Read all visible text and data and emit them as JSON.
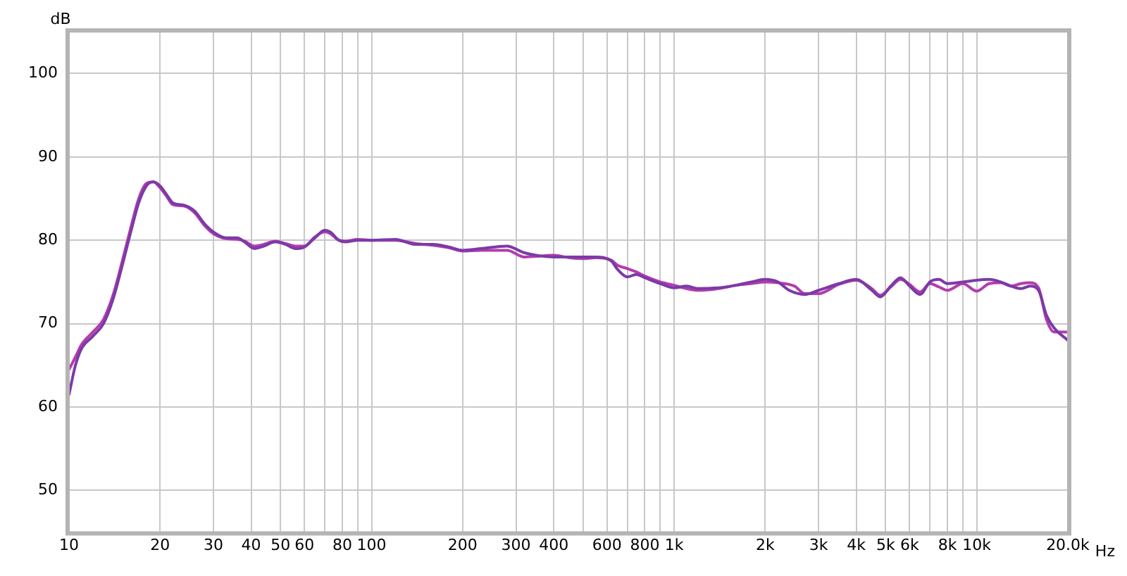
{
  "chart_data": {
    "type": "line",
    "xlabel": "Hz",
    "ylabel": "dB",
    "log": "x",
    "grid": true,
    "legend": false,
    "marker": "none",
    "line_style": "solid",
    "xlim": [
      10,
      20000
    ],
    "ylim": [
      45,
      105
    ],
    "xticks": [
      10,
      20,
      30,
      40,
      50,
      60,
      {
        "value": 70,
        "label": null
      },
      80,
      {
        "value": 90,
        "label": null
      },
      100,
      200,
      300,
      400,
      {
        "value": 500,
        "label": null
      },
      600,
      {
        "value": 700,
        "label": null
      },
      800,
      {
        "value": 900,
        "label": null
      },
      {
        "value": 1000,
        "label": "1k"
      },
      {
        "value": 2000,
        "label": "2k"
      },
      {
        "value": 3000,
        "label": "3k"
      },
      {
        "value": 4000,
        "label": "4k"
      },
      {
        "value": 5000,
        "label": "5k"
      },
      {
        "value": 6000,
        "label": "6k"
      },
      {
        "value": 7000,
        "label": null
      },
      {
        "value": 8000,
        "label": "8k"
      },
      {
        "value": 9000,
        "label": null
      },
      {
        "value": 10000,
        "label": "10k"
      },
      {
        "value": 20000,
        "label": "20.0k"
      }
    ],
    "yticks": [
      50,
      60,
      70,
      80,
      90,
      100
    ],
    "series": [
      {
        "color": "#7c3aa6",
        "x": [
          10,
          10.5,
          11,
          12,
          13,
          14,
          15,
          16,
          17,
          18,
          19,
          20,
          21,
          22,
          24,
          26,
          28,
          30,
          33,
          36,
          38,
          41,
          44,
          48,
          52,
          56,
          60,
          65,
          70,
          73,
          78,
          82,
          90,
          100,
          120,
          140,
          160,
          180,
          200,
          230,
          280,
          320,
          400,
          450,
          500,
          550,
          620,
          650,
          700,
          750,
          800,
          900,
          1000,
          1100,
          1200,
          1400,
          1600,
          1800,
          2000,
          2200,
          2400,
          2700,
          3000,
          3500,
          4000,
          4500,
          4800,
          5200,
          5600,
          6000,
          6500,
          7000,
          7500,
          8000,
          9000,
          10000,
          11000,
          12000,
          13000,
          14000,
          15000,
          16000,
          17000,
          18000,
          20000
        ],
        "values": [
          61.5,
          65,
          67,
          68.5,
          70,
          73,
          77,
          81,
          84.5,
          86.5,
          87,
          86.5,
          85.5,
          84.5,
          84.2,
          83.5,
          82,
          81,
          80.3,
          80.3,
          79.8,
          79,
          79.3,
          79.8,
          79.5,
          79,
          79.2,
          80.3,
          81.2,
          81,
          80,
          79.8,
          80,
          80,
          80.1,
          79.5,
          79.5,
          79.2,
          78.8,
          79,
          79.3,
          78.5,
          78,
          78,
          78,
          78,
          77.5,
          76.5,
          75.6,
          75.9,
          75.5,
          74.8,
          74.3,
          74.5,
          74.2,
          74.3,
          74.6,
          75,
          75.3,
          75,
          74,
          73.5,
          74,
          74.8,
          75.3,
          74,
          73.2,
          74.5,
          75.5,
          74.5,
          73.5,
          75,
          75.3,
          74.8,
          75,
          75.2,
          75.3,
          75,
          74.5,
          74.2,
          74.5,
          74,
          71,
          69.5,
          68
        ]
      },
      {
        "color": "#b33cae",
        "x": [
          10,
          10.5,
          11,
          12,
          13,
          14,
          15,
          16,
          17,
          18,
          19,
          20,
          21,
          22,
          24,
          26,
          28,
          30,
          33,
          36,
          38,
          41,
          44,
          48,
          52,
          56,
          60,
          65,
          70,
          73,
          78,
          82,
          90,
          100,
          120,
          140,
          160,
          180,
          200,
          230,
          280,
          320,
          400,
          450,
          500,
          550,
          620,
          650,
          700,
          750,
          800,
          900,
          1000,
          1100,
          1200,
          1400,
          1600,
          1800,
          2000,
          2200,
          2500,
          2700,
          3000,
          3500,
          4000,
          4500,
          4800,
          5200,
          5600,
          6000,
          6500,
          7000,
          7500,
          8000,
          9000,
          10000,
          11000,
          12000,
          13000,
          14000,
          15000,
          16000,
          17000,
          18000,
          20000
        ],
        "values": [
          64.5,
          66,
          67.5,
          69,
          70.5,
          73.5,
          77.5,
          81.5,
          85,
          86.8,
          87,
          86.3,
          85.3,
          84.3,
          84.1,
          83.3,
          81.8,
          80.8,
          80.2,
          80.1,
          79.9,
          79.3,
          79.5,
          79.9,
          79.6,
          79.3,
          79.3,
          80.4,
          81,
          80.8,
          80,
          79.9,
          80.1,
          80,
          80,
          79.6,
          79.4,
          79.1,
          78.7,
          78.8,
          78.8,
          78,
          78.2,
          77.9,
          77.8,
          77.9,
          77.6,
          77,
          76.6,
          76.2,
          75.7,
          75,
          74.6,
          74.2,
          74,
          74.2,
          74.6,
          74.8,
          75,
          74.9,
          74.5,
          73.6,
          73.6,
          74.7,
          75.2,
          74.2,
          73.4,
          74.4,
          75.3,
          74.7,
          73.8,
          74.8,
          74.4,
          74,
          74.8,
          73.9,
          74.8,
          74.9,
          74.5,
          74.8,
          74.9,
          74.3,
          70.5,
          69,
          69
        ]
      }
    ]
  }
}
